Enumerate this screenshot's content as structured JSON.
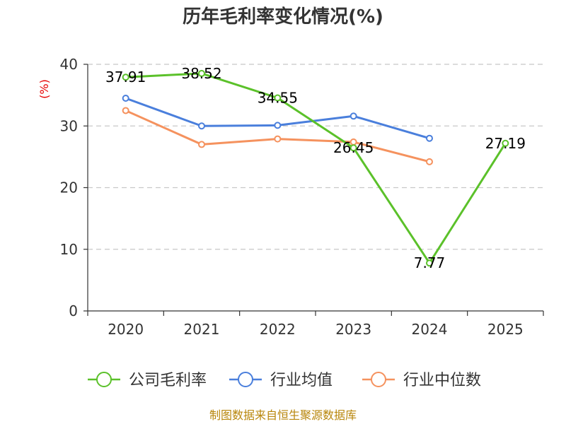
{
  "chart_data": {
    "type": "line",
    "title": "历年毛利率变化情况(%)",
    "ylabel": "(%)",
    "categories": [
      "2020",
      "2021",
      "2022",
      "2023",
      "2024",
      "2025"
    ],
    "yticks": [
      "0",
      "10",
      "20",
      "30",
      "40"
    ],
    "ylim": [
      0,
      40
    ],
    "grid": true,
    "legend_position": "bottom",
    "series": [
      {
        "name": "公司毛利率",
        "color": "#5bc12a",
        "values": [
          37.91,
          38.52,
          34.55,
          26.45,
          7.77,
          27.19
        ],
        "labels": [
          "37.91",
          "38.52",
          "34.55",
          "26.45",
          "7.77",
          "27.19"
        ]
      },
      {
        "name": "行业均值",
        "color": "#4a7fdc",
        "values": [
          34.5,
          30.0,
          30.1,
          31.6,
          28.0,
          null
        ]
      },
      {
        "name": "行业中位数",
        "color": "#f5925e",
        "values": [
          32.5,
          27.0,
          27.9,
          27.4,
          24.2,
          null
        ]
      }
    ]
  },
  "footer": {
    "source": "制图数据来自恒生聚源数据库"
  }
}
